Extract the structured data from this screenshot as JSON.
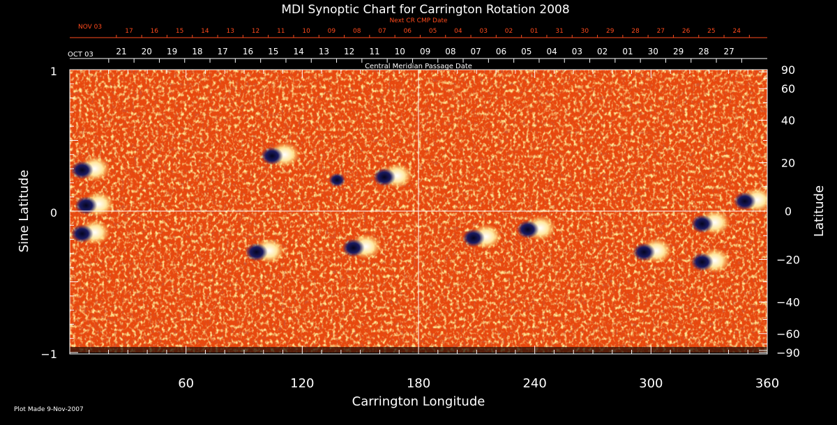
{
  "title": "MDI Synoptic Chart for Carrington Rotation 2008",
  "next_cr_label": "Next CR CMP Date",
  "next_cr_start": "NOV 03",
  "next_cr_dates": [
    "17",
    "16",
    "15",
    "14",
    "13",
    "12",
    "11",
    "10",
    "09",
    "08",
    "07",
    "06",
    "05",
    "04",
    "03",
    "02",
    "01",
    "31",
    "30",
    "29",
    "28",
    "27",
    "26",
    "25",
    "24"
  ],
  "cmp_start": "OCT 03",
  "cmp_dates": [
    "21",
    "20",
    "19",
    "18",
    "17",
    "16",
    "15",
    "14",
    "13",
    "12",
    "11",
    "10",
    "09",
    "08",
    "07",
    "06",
    "05",
    "04",
    "03",
    "02",
    "01",
    "30",
    "29",
    "28",
    "27"
  ],
  "cmp_label": "Central Meridian Passage Date",
  "x_axis_label": "Carrington Longitude",
  "x_ticks": [
    "60",
    "120",
    "180",
    "240",
    "300",
    "360"
  ],
  "left_axis_label": "Sine Latitude",
  "left_ticks": [
    "1",
    "0",
    "−1"
  ],
  "right_axis_label": "Latitude",
  "right_ticks": [
    "90",
    "60",
    "40",
    "20",
    "0",
    "−20",
    "−40",
    "−60",
    "−90"
  ],
  "footer": "Plot Made  9-Nov-2007",
  "map": {
    "longitude_range": [
      0,
      360
    ],
    "sine_latitude_range": [
      -1,
      1
    ],
    "background_color": "#e8480e",
    "positive_polarity_color": "#ffffff",
    "negative_polarity_color": "#0d0d45",
    "crosshair_longitude": 180,
    "crosshair_latitude": 0,
    "regions": [
      {
        "lon": 10,
        "sinlat": 0.3,
        "polarity": "bipolar"
      },
      {
        "lon": 12,
        "sinlat": 0.05,
        "polarity": "bipolar"
      },
      {
        "lon": 10,
        "sinlat": -0.15,
        "polarity": "bipolar"
      },
      {
        "lon": 108,
        "sinlat": 0.4,
        "polarity": "bipolar"
      },
      {
        "lon": 138,
        "sinlat": 0.22,
        "polarity": "negative"
      },
      {
        "lon": 166,
        "sinlat": 0.25,
        "polarity": "bipolar"
      },
      {
        "lon": 150,
        "sinlat": -0.25,
        "polarity": "bipolar"
      },
      {
        "lon": 100,
        "sinlat": -0.28,
        "polarity": "bipolar"
      },
      {
        "lon": 212,
        "sinlat": -0.18,
        "polarity": "bipolar"
      },
      {
        "lon": 240,
        "sinlat": -0.12,
        "polarity": "bipolar"
      },
      {
        "lon": 300,
        "sinlat": -0.28,
        "polarity": "bipolar"
      },
      {
        "lon": 330,
        "sinlat": -0.35,
        "polarity": "bipolar"
      },
      {
        "lon": 352,
        "sinlat": 0.08,
        "polarity": "bipolar"
      },
      {
        "lon": 330,
        "sinlat": -0.08,
        "polarity": "bipolar"
      }
    ]
  }
}
